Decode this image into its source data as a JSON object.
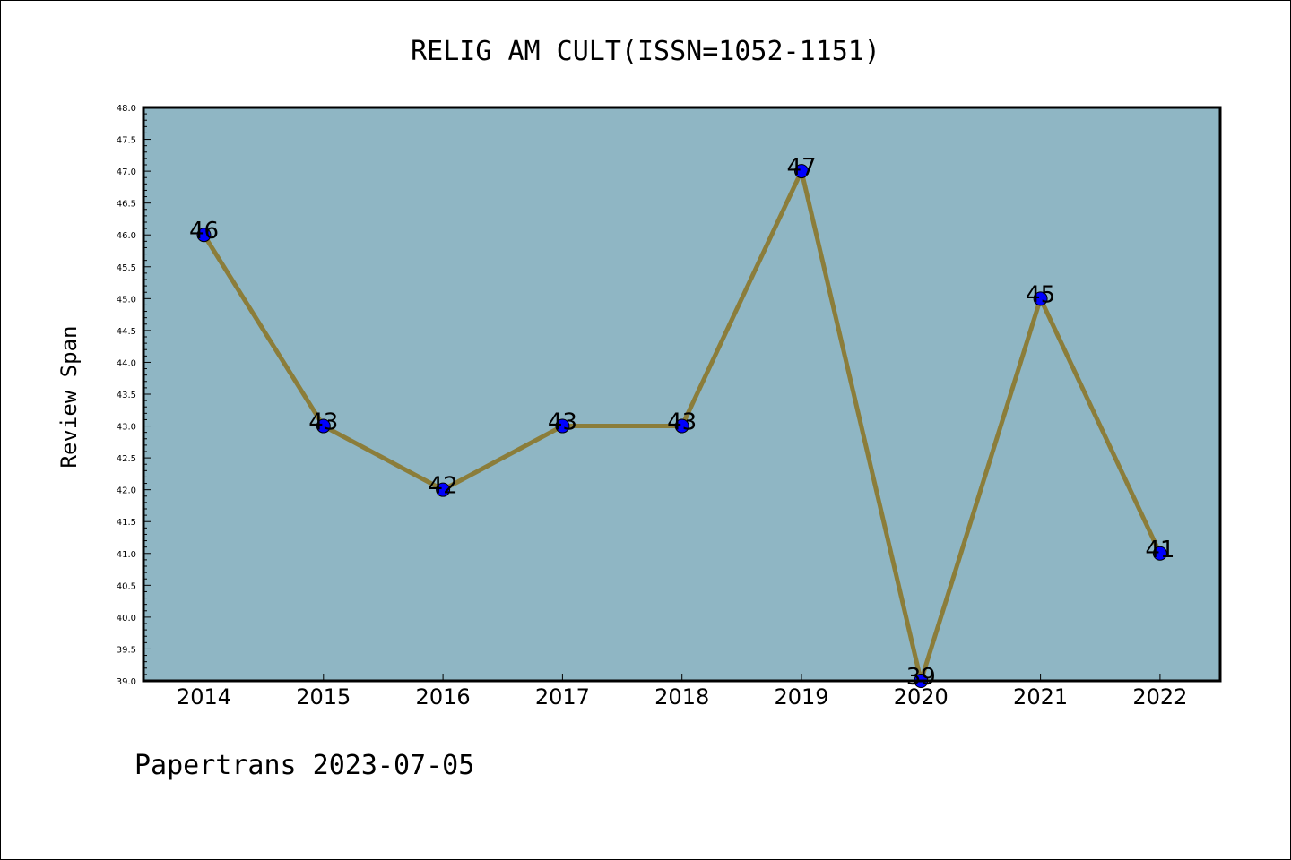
{
  "chart_data": {
    "type": "line",
    "title": "RELIG AM CULT(ISSN=1052-1151)",
    "ylabel": "Review Span",
    "xlabel": "",
    "categories": [
      "2014",
      "2015",
      "2016",
      "2017",
      "2018",
      "2019",
      "2020",
      "2021",
      "2022"
    ],
    "series": [
      {
        "values": [
          46,
          43,
          42,
          43,
          43,
          47,
          39,
          45,
          41
        ]
      }
    ],
    "data_labels": [
      "46",
      "43",
      "42",
      "43",
      "43",
      "47",
      "39",
      "45",
      "41"
    ],
    "ylim": [
      39.0,
      48.0
    ],
    "yticks": [
      "39.0",
      "39.5",
      "40.0",
      "40.5",
      "41.0",
      "41.5",
      "42.0",
      "42.5",
      "43.0",
      "43.5",
      "44.0",
      "44.5",
      "45.0",
      "45.5",
      "46.0",
      "46.5",
      "47.0",
      "47.5",
      "48.0"
    ],
    "grid": false,
    "colors": {
      "plot_background": "#8fb6c4",
      "line": "#8b7d3a",
      "marker": "#0000ff"
    }
  },
  "footer": "Papertrans 2023-07-05"
}
